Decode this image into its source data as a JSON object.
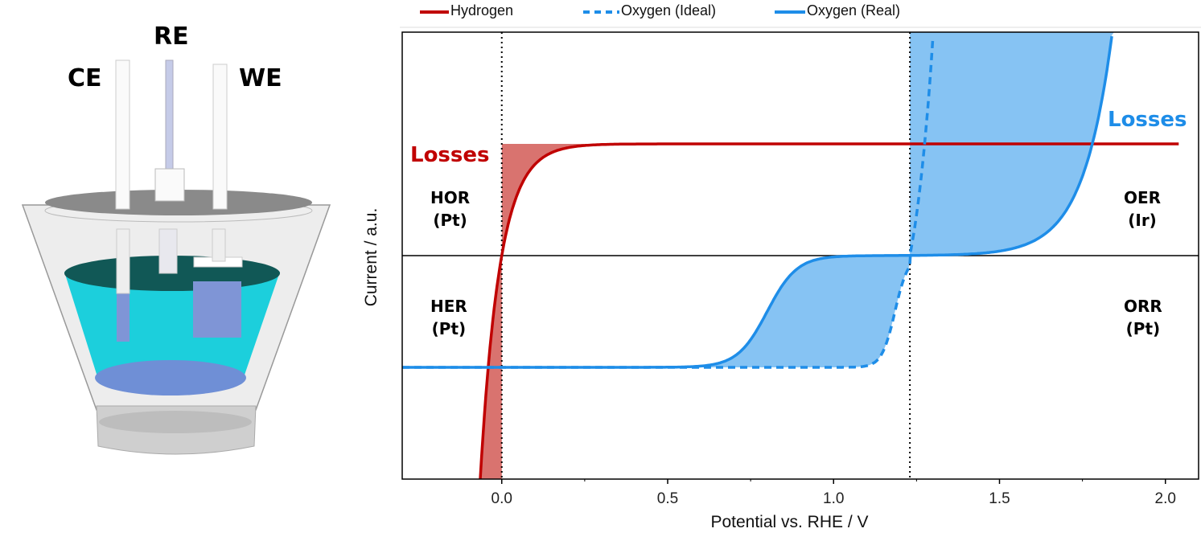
{
  "diagram": {
    "electrodes": {
      "ce": "CE",
      "re": "RE",
      "we": "WE"
    }
  },
  "chart_data": {
    "type": "line",
    "xlabel": "Potential vs. RHE / V",
    "ylabel": "Current / a.u.",
    "xlim": [
      -0.3,
      2.1
    ],
    "ylim": [
      -2.0,
      2.0
    ],
    "xticks": [
      0.0,
      0.5,
      1.0,
      1.5,
      2.0
    ],
    "xtick_labels": [
      "0.0",
      "0.5",
      "1.0",
      "1.5",
      "2.0"
    ],
    "legend": {
      "placement": "top",
      "entries": [
        "Hydrogen",
        "Oxygen (Ideal)",
        "Oxygen (Real)"
      ]
    },
    "reference_lines": {
      "x": [
        0.0,
        1.23
      ],
      "y": [
        0
      ]
    },
    "series": [
      {
        "name": "Hydrogen",
        "color": "#c00000",
        "style": "solid",
        "x": [
          -0.065,
          -0.05,
          -0.03,
          0.0,
          0.03,
          0.06,
          0.1,
          0.15,
          0.2,
          0.3,
          0.5,
          1.0,
          1.5,
          2.04
        ],
        "y": [
          -2.0,
          -1.48,
          -0.73,
          0.0,
          0.42,
          0.66,
          0.84,
          0.93,
          0.97,
          0.995,
          1.0,
          1.0,
          1.0,
          1.0
        ]
      },
      {
        "name": "Oxygen (Ideal)",
        "color": "#1e8de8",
        "style": "dashed",
        "x": [
          -0.3,
          0.5,
          0.9,
          1.0,
          1.05,
          1.1,
          1.15,
          1.2,
          1.23,
          1.25,
          1.27,
          1.3
        ],
        "y": [
          -1.0,
          -1.0,
          -1.0,
          -0.99,
          -0.98,
          -0.94,
          -0.8,
          -0.45,
          0.0,
          0.37,
          0.87,
          2.0
        ]
      },
      {
        "name": "Oxygen (Real)",
        "color": "#1e8de8",
        "style": "solid",
        "x": [
          -0.3,
          0.5,
          0.6,
          0.7,
          0.75,
          0.8,
          0.85,
          0.9,
          1.0,
          1.23,
          1.5,
          1.6,
          1.7,
          1.78,
          1.84
        ],
        "y": [
          -1.0,
          -1.0,
          -0.99,
          -0.9,
          -0.75,
          -0.5,
          -0.25,
          -0.1,
          -0.01,
          0.0,
          0.04,
          0.13,
          0.4,
          1.0,
          2.0
        ]
      }
    ],
    "shaded_regions": [
      {
        "name": "hydrogen-losses",
        "color": "#d9736f"
      },
      {
        "name": "oxygen-losses",
        "color": "#86c3f3"
      }
    ],
    "annotations": {
      "losses_h": "Losses",
      "losses_o": "Losses",
      "hor": [
        "HOR",
        "(Pt)"
      ],
      "her": [
        "HER",
        "(Pt)"
      ],
      "oer": [
        "OER",
        "(Ir)"
      ],
      "orr": [
        "ORR",
        "(Pt)"
      ]
    }
  }
}
